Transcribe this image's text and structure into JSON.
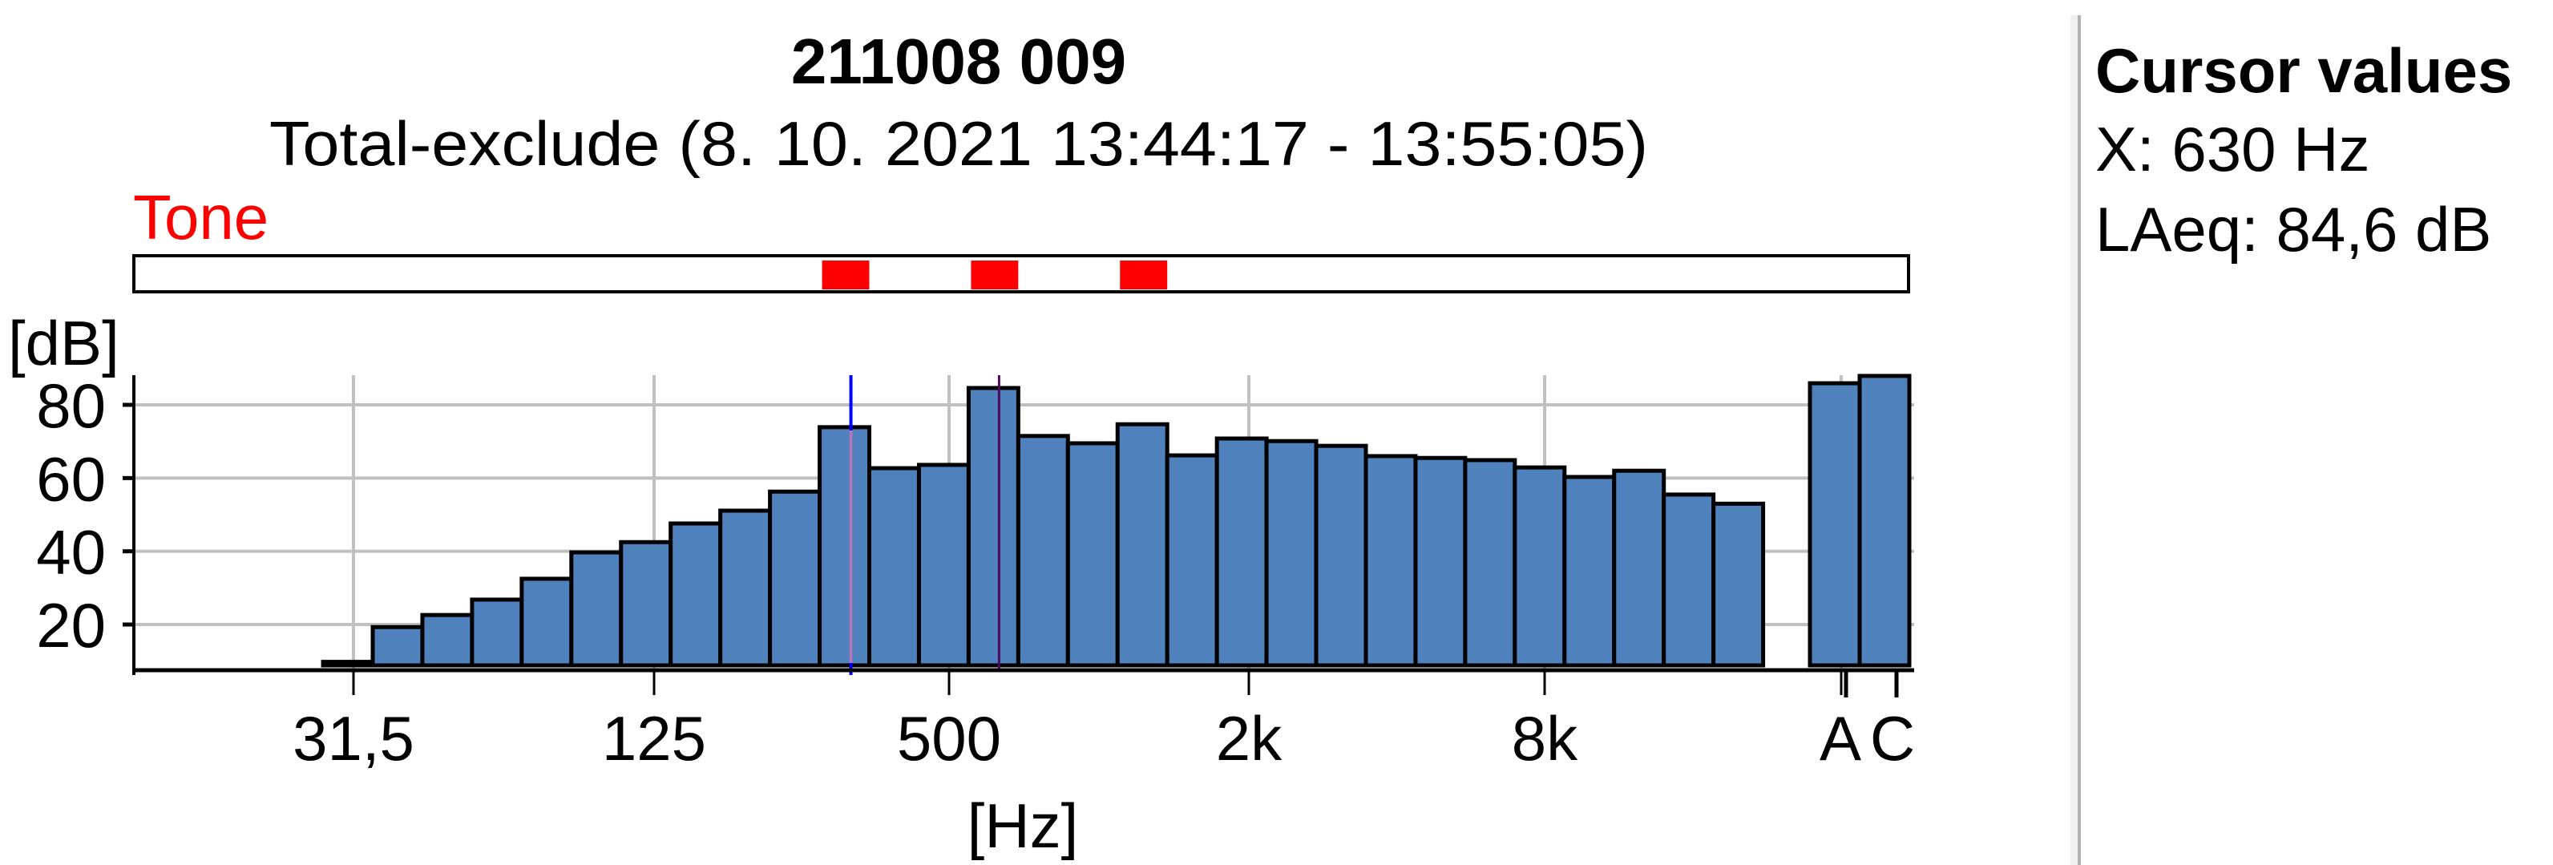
{
  "chart_data": {
    "type": "bar",
    "title": "211008 009",
    "subtitle": "Total-exclude (8. 10. 2021 13:44:17 - 13:55:05)",
    "ylabel": "[dB]",
    "xlabel": "[Hz]",
    "ylim": [
      9,
      88
    ],
    "yticks": [
      20,
      40,
      60,
      80
    ],
    "x_scale": "log (1/3 octave bands)",
    "xtick_labels": [
      "31,5",
      "125",
      "500",
      "2k",
      "8k",
      "A",
      "C"
    ],
    "grid": true,
    "bar_color": "#4f81bd",
    "bands": [
      "10",
      "31,5",
      "40",
      "50",
      "63",
      "80",
      "100",
      "125",
      "160",
      "200",
      "250",
      "315",
      "400",
      "500",
      "630",
      "800",
      "1k",
      "1,25k",
      "1,6k",
      "2k",
      "2,5k",
      "3,15k",
      "4k",
      "5k",
      "6,3k",
      "8k",
      "10k",
      "12,5k",
      "16k",
      "20k"
    ],
    "values": [
      10.5,
      9.8,
      19.3,
      22.6,
      26.8,
      32.5,
      39.7,
      42.5,
      47.6,
      51.1,
      56.3,
      73.9,
      62.7,
      63.6,
      84.6,
      71.5,
      69.5,
      74.7,
      66.2,
      70.8,
      70.1,
      68.8,
      66.0,
      65.5,
      64.9,
      62.9,
      60.3,
      62.0,
      55.5,
      53.0
    ],
    "totals": [
      {
        "label": "A",
        "value": 85.9
      },
      {
        "label": "C",
        "value": 87.9
      }
    ],
    "cursor_band": "630",
    "secondary_cursor_band": "315",
    "tone": {
      "label": "Tone",
      "color": "#ff0000",
      "bands": [
        "315",
        "630",
        "1,25k"
      ]
    }
  },
  "cursor_panel": {
    "title": "Cursor values",
    "x_line": "X: 630 Hz",
    "value_line": "LAeq: 84,6 dB"
  }
}
